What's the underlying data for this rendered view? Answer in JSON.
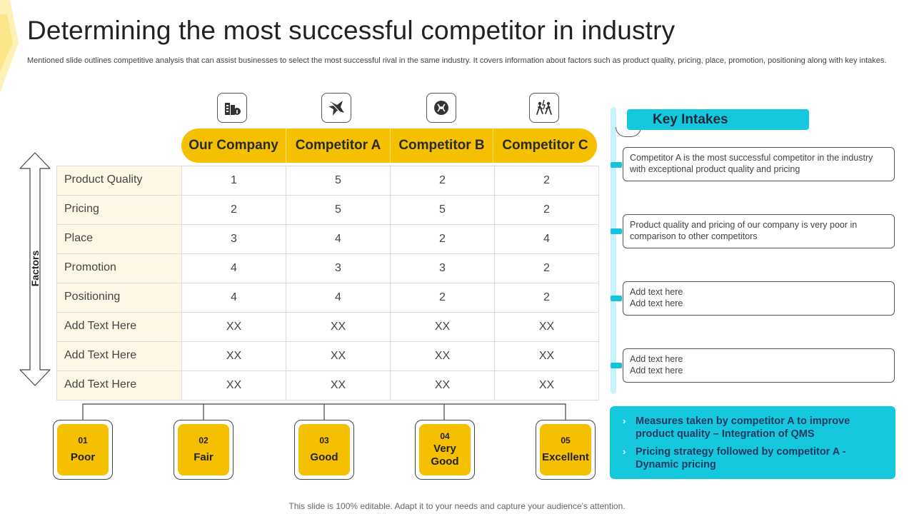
{
  "title": "Determining the most successful competitor in industry",
  "subtitle": "Mentioned slide outlines competitive analysis that can assist businesses to select the most successful rival in the same industry. It covers information about factors such as product quality, pricing, place, promotion, positioning along with key intakes.",
  "factors_label": "Factors",
  "columns": [
    {
      "label": "Our Company",
      "icon": "company-buildings-icon"
    },
    {
      "label": "Competitor A",
      "icon": "competitor-a-icon"
    },
    {
      "label": "Competitor B",
      "icon": "competitor-b-icon"
    },
    {
      "label": "Competitor C",
      "icon": "competitor-c-icon"
    }
  ],
  "rows": [
    {
      "factor": "Product Quality",
      "values": [
        "1",
        "5",
        "2",
        "2"
      ]
    },
    {
      "factor": "Pricing",
      "values": [
        "2",
        "5",
        "5",
        "2"
      ]
    },
    {
      "factor": "Place",
      "values": [
        "3",
        "4",
        "2",
        "4"
      ]
    },
    {
      "factor": "Promotion",
      "values": [
        "4",
        "3",
        "3",
        "2"
      ]
    },
    {
      "factor": "Positioning",
      "values": [
        "4",
        "4",
        "2",
        "2"
      ]
    },
    {
      "factor": "Add Text Here",
      "values": [
        "XX",
        "XX",
        "XX",
        "XX"
      ]
    },
    {
      "factor": "Add Text Here",
      "values": [
        "XX",
        "XX",
        "XX",
        "XX"
      ]
    },
    {
      "factor": "Add Text Here",
      "values": [
        "XX",
        "XX",
        "XX",
        "XX"
      ]
    }
  ],
  "scale": [
    {
      "num": "01",
      "label": "Poor"
    },
    {
      "num": "02",
      "label": "Fair"
    },
    {
      "num": "03",
      "label": "Good"
    },
    {
      "num": "04",
      "label": "Very Good"
    },
    {
      "num": "05",
      "label": "Excellent"
    }
  ],
  "key_intakes": {
    "title": "Key Intakes",
    "items": [
      {
        "lines": [
          "Competitor A is the most successful competitor in the industry with exceptional product quality and pricing"
        ]
      },
      {
        "lines": [
          "Product quality and pricing of our company is very poor in comparison to other competitors"
        ]
      },
      {
        "lines": [
          "Add text here",
          "Add text here"
        ]
      },
      {
        "lines": [
          "Add text here",
          "Add text here"
        ]
      }
    ]
  },
  "measures": [
    "Measures taken by competitor A to improve product quality – Integration of QMS",
    "Pricing strategy followed by competitor A - Dynamic pricing"
  ],
  "footer": "This slide is 100% editable. Adapt it to your needs and capture your audience's attention.",
  "colors": {
    "accent_yellow": "#f5c000",
    "accent_cyan": "#15c8de",
    "factor_bg": "#fdf8e6"
  }
}
